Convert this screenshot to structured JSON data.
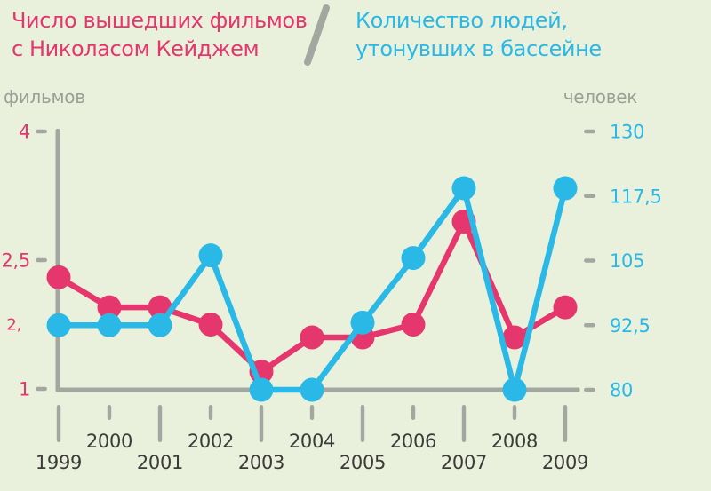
{
  "header": {
    "left_title": "Число вышедших фильмов\nс Николасом Кейджем",
    "right_title": "Количество людей,\nутонувших в бассейне",
    "divider": "/"
  },
  "colors": {
    "pink": "#e5366d",
    "blue": "#2ab8e6",
    "gray": "#a4a7a0",
    "background": "#e9f1dc",
    "year_text": "#3b3b38",
    "unit_text": "#9aa095"
  },
  "chart_data": {
    "type": "line",
    "title": "Число вышедших фильмов с Николасом Кейджем / Количество людей, утонувших в бассейне",
    "grid": false,
    "legend_position": "top",
    "x": [
      1999,
      2000,
      2001,
      2002,
      2003,
      2004,
      2005,
      2006,
      2007,
      2008,
      2009
    ],
    "x_tick_labels": [
      "1999",
      "2000",
      "2001",
      "2002",
      "2003",
      "2004",
      "2005",
      "2006",
      "2007",
      "2008",
      "2009"
    ],
    "series": [
      {
        "id": "cage-films",
        "name": "Число вышедших фильмов с Николасом Кейджем",
        "axis": "left",
        "unit": "фильмов",
        "color": "#e5366d",
        "values": [
          2.3,
          1.95,
          1.95,
          1.75,
          1.2,
          1.6,
          1.6,
          1.75,
          2.95,
          1.6,
          1.95
        ]
      },
      {
        "id": "pool-drownings",
        "name": "Количество людей, утонувших в бассейне",
        "axis": "right",
        "unit": "человек",
        "color": "#2ab8e6",
        "values": [
          92.5,
          92.5,
          92.5,
          106,
          80,
          80,
          93,
          105.5,
          119,
          80,
          119
        ]
      }
    ],
    "left_axis": {
      "unit": "фильмов",
      "range": [
        1,
        4
      ],
      "ticks": [
        {
          "label": "4",
          "value": 4,
          "dash": true,
          "small": false
        },
        {
          "label": "2,5",
          "value": 2.5,
          "dash": true,
          "small": false
        },
        {
          "label": "2,",
          "value": 1.75,
          "dash": false,
          "small": true
        },
        {
          "label": "1",
          "value": 1,
          "dash": true,
          "small": false
        }
      ]
    },
    "right_axis": {
      "unit": "человек",
      "range": [
        80,
        130
      ],
      "ticks": [
        {
          "label": "130",
          "value": 130,
          "dash": true
        },
        {
          "label": "117,5",
          "value": 117.5,
          "dash": true
        },
        {
          "label": "105",
          "value": 105,
          "dash": true
        },
        {
          "label": "92,5",
          "value": 92.5,
          "dash": true
        },
        {
          "label": "80",
          "value": 80,
          "dash": true
        }
      ]
    }
  }
}
